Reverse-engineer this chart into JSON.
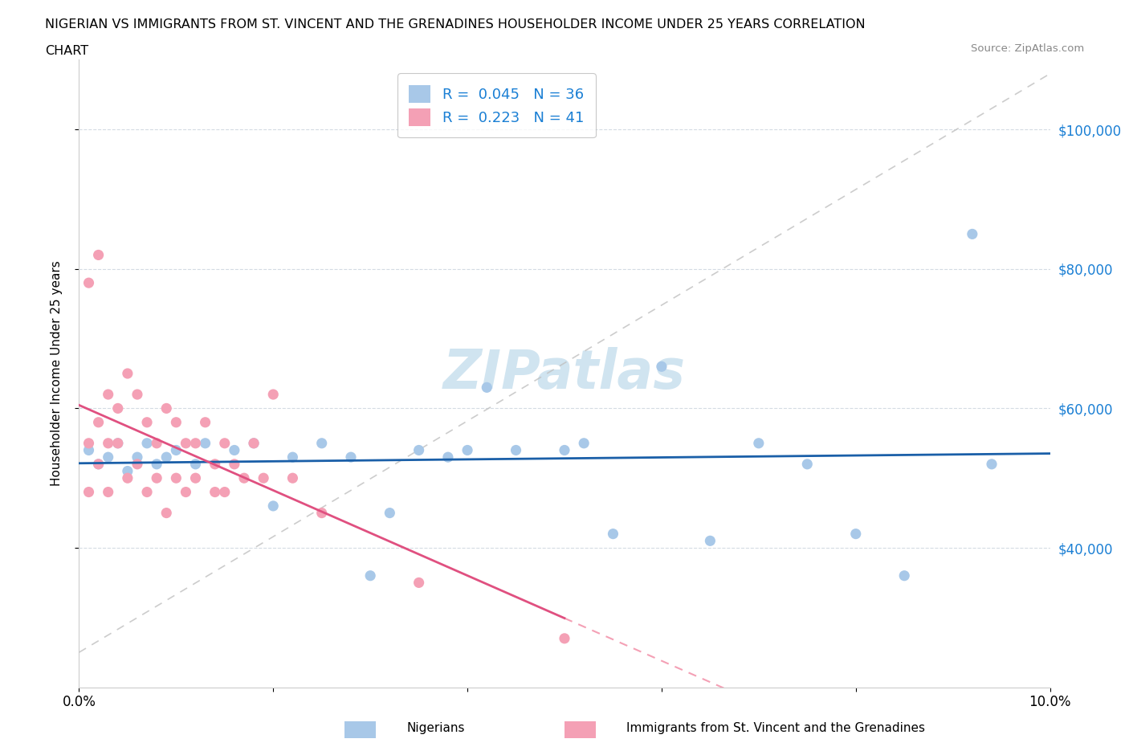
{
  "title_line1": "NIGERIAN VS IMMIGRANTS FROM ST. VINCENT AND THE GRENADINES HOUSEHOLDER INCOME UNDER 25 YEARS CORRELATION",
  "title_line2": "CHART",
  "source": "Source: ZipAtlas.com",
  "ylabel": "Householder Income Under 25 years",
  "xlim": [
    0.0,
    0.1
  ],
  "ylim": [
    20000,
    110000
  ],
  "blue_color": "#a8c8e8",
  "pink_color": "#f4a0b5",
  "blue_line_color": "#1a5fa8",
  "pink_line_color": "#e05080",
  "pink_dash_color": "#f4a0b5",
  "gray_line_color": "#c0c0c0",
  "watermark": "ZIPatlas",
  "watermark_color": "#d0e4f0",
  "blue_label": "Nigerians",
  "pink_label": "Immigrants from St. Vincent and the Grenadines",
  "nigerians_x": [
    0.001,
    0.002,
    0.003,
    0.004,
    0.005,
    0.006,
    0.007,
    0.008,
    0.009,
    0.01,
    0.012,
    0.013,
    0.016,
    0.018,
    0.02,
    0.022,
    0.025,
    0.028,
    0.03,
    0.032,
    0.035,
    0.038,
    0.04,
    0.042,
    0.045,
    0.05,
    0.052,
    0.055,
    0.06,
    0.065,
    0.07,
    0.075,
    0.08,
    0.085,
    0.092,
    0.094
  ],
  "nigerians_y": [
    54000,
    52000,
    53000,
    55000,
    51000,
    53000,
    55000,
    52000,
    53000,
    54000,
    52000,
    55000,
    54000,
    55000,
    46000,
    53000,
    55000,
    53000,
    36000,
    45000,
    54000,
    53000,
    54000,
    63000,
    54000,
    54000,
    55000,
    42000,
    66000,
    41000,
    55000,
    52000,
    42000,
    36000,
    85000,
    52000
  ],
  "svg_x": [
    0.001,
    0.001,
    0.001,
    0.002,
    0.002,
    0.002,
    0.003,
    0.003,
    0.003,
    0.004,
    0.004,
    0.005,
    0.005,
    0.006,
    0.006,
    0.007,
    0.007,
    0.008,
    0.008,
    0.009,
    0.009,
    0.01,
    0.01,
    0.011,
    0.011,
    0.012,
    0.012,
    0.013,
    0.014,
    0.014,
    0.015,
    0.015,
    0.016,
    0.017,
    0.018,
    0.019,
    0.02,
    0.022,
    0.025,
    0.035,
    0.05
  ],
  "svg_y": [
    55000,
    48000,
    78000,
    82000,
    58000,
    52000,
    55000,
    62000,
    48000,
    60000,
    55000,
    65000,
    50000,
    62000,
    52000,
    58000,
    48000,
    55000,
    50000,
    60000,
    45000,
    58000,
    50000,
    55000,
    48000,
    55000,
    50000,
    58000,
    52000,
    48000,
    55000,
    48000,
    52000,
    50000,
    55000,
    50000,
    62000,
    50000,
    45000,
    35000,
    27000
  ]
}
